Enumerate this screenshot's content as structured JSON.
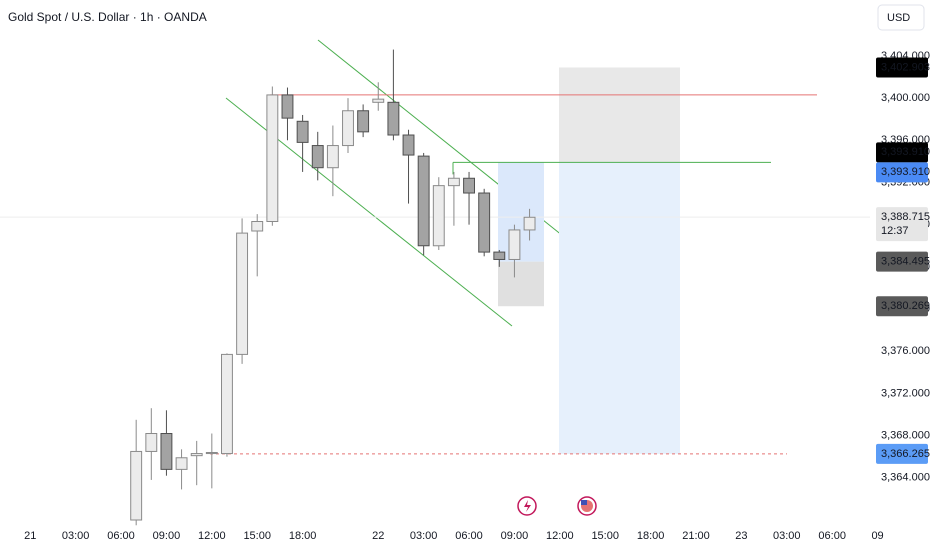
{
  "chart_data": {
    "type": "candlestick",
    "title": "Gold Spot / U.S. Dollar · 1h · OANDA",
    "currency": "USD",
    "x": [
      7,
      8,
      9,
      10,
      11,
      12,
      13,
      14,
      15,
      16,
      17,
      18,
      19,
      20,
      21,
      22,
      23,
      24,
      25,
      26,
      27,
      28,
      29,
      30,
      31,
      32,
      33
    ],
    "open": [
      3360.0,
      3366.5,
      3368.2,
      3364.8,
      3366.1,
      3366.3,
      3366.3,
      3375.7,
      3387.4,
      3388.3,
      3400.3,
      3397.8,
      3395.5,
      3393.4,
      3395.5,
      3398.8,
      3399.6,
      3399.6,
      3396.5,
      3394.5,
      3386.0,
      3391.7,
      3392.4,
      3391.0,
      3385.4,
      3384.7,
      3387.5
    ],
    "high": [
      3369.5,
      3370.6,
      3370.4,
      3366.7,
      3367.5,
      3368.2,
      3375.8,
      3388.6,
      3389.0,
      3401.1,
      3401.0,
      3398.4,
      3396.8,
      3397.4,
      3400.0,
      3399.4,
      3401.5,
      3404.6,
      3397.0,
      3394.8,
      3392.5,
      3393.0,
      3393.0,
      3391.4,
      3385.6,
      3388.0,
      3389.5
    ],
    "low": [
      3359.5,
      3363.8,
      3364.2,
      3362.9,
      3363.3,
      3363.0,
      3366.0,
      3374.8,
      3383.1,
      3387.9,
      3396.0,
      3393.0,
      3392.2,
      3390.7,
      3394.8,
      3396.3,
      3398.8,
      3396.0,
      3390.0,
      3385.1,
      3385.6,
      3387.9,
      3388.0,
      3385.0,
      3384.0,
      3383.0,
      3386.5
    ],
    "close": [
      3366.5,
      3368.2,
      3364.8,
      3365.9,
      3366.3,
      3366.4,
      3375.7,
      3387.2,
      3388.3,
      3400.3,
      3398.1,
      3395.8,
      3393.4,
      3395.5,
      3398.8,
      3396.8,
      3399.9,
      3396.5,
      3394.6,
      3386.0,
      3391.7,
      3392.4,
      3391.0,
      3385.4,
      3384.7,
      3387.5,
      3388.7
    ],
    "up_color": "#ececec",
    "down_color": "#a3a3a3",
    "xlim": [
      -2,
      55.5
    ],
    "xticks": [
      {
        "value": 0,
        "label": "21"
      },
      {
        "value": 3,
        "label": "03:00"
      },
      {
        "value": 6,
        "label": "06:00"
      },
      {
        "value": 9,
        "label": "09:00"
      },
      {
        "value": 12,
        "label": "12:00"
      },
      {
        "value": 15,
        "label": "15:00"
      },
      {
        "value": 18,
        "label": "18:00"
      },
      {
        "value": 23,
        "label": "22"
      },
      {
        "value": 26,
        "label": "03:00"
      },
      {
        "value": 29,
        "label": "06:00"
      },
      {
        "value": 32,
        "label": "09:00"
      },
      {
        "value": 35,
        "label": "12:00"
      },
      {
        "value": 38,
        "label": "15:00"
      },
      {
        "value": 41,
        "label": "18:00"
      },
      {
        "value": 44,
        "label": "21:00"
      },
      {
        "value": 47,
        "label": "23"
      },
      {
        "value": 50,
        "label": "03:00"
      },
      {
        "value": 53,
        "label": "06:00"
      },
      {
        "value": 56,
        "label": "09"
      }
    ],
    "ylim": [
      3360,
      3409.3
    ],
    "yticks": [
      {
        "value": 3364,
        "label": "3,364.000"
      },
      {
        "value": 3368,
        "label": "3,368.000"
      },
      {
        "value": 3372,
        "label": "3,372.000"
      },
      {
        "value": 3376,
        "label": "3,376.000"
      },
      {
        "value": 3380,
        "label": "3,380.000"
      },
      {
        "value": 3384,
        "label": "3,384.000"
      },
      {
        "value": 3388,
        "label": "3,388.000"
      },
      {
        "value": 3392,
        "label": "3,392.000"
      },
      {
        "value": 3396,
        "label": "3,396.000"
      },
      {
        "value": 3400,
        "label": "3,400.000"
      },
      {
        "value": 3404,
        "label": "3,404.000"
      }
    ],
    "price_tags": [
      {
        "value": 3402.903,
        "label": "3,402.903",
        "color": "#000000",
        "text_color": "#ffffff"
      },
      {
        "value": 3393.91,
        "label": "3,393.910",
        "color": "#000000",
        "text_color": "#ffffff"
      },
      {
        "value": 3393.91,
        "label": "3,393.910",
        "color": "#4a8af4",
        "text_color": "#ffffff"
      },
      {
        "value": 3388.715,
        "label": "3,388.715",
        "sublabel": "12:37",
        "color": "#e6e6e6",
        "text_color": "#131722"
      },
      {
        "value": 3384.495,
        "label": "3,384.495",
        "color": "#5a5a5a",
        "text_color": "#ffffff"
      },
      {
        "value": 3380.269,
        "label": "3,380.269",
        "color": "#5a5a5a",
        "text_color": "#ffffff"
      },
      {
        "value": 3366.265,
        "label": "3,366.265",
        "color": "#5b9cf6",
        "text_color": "#131722"
      }
    ]
  }
}
